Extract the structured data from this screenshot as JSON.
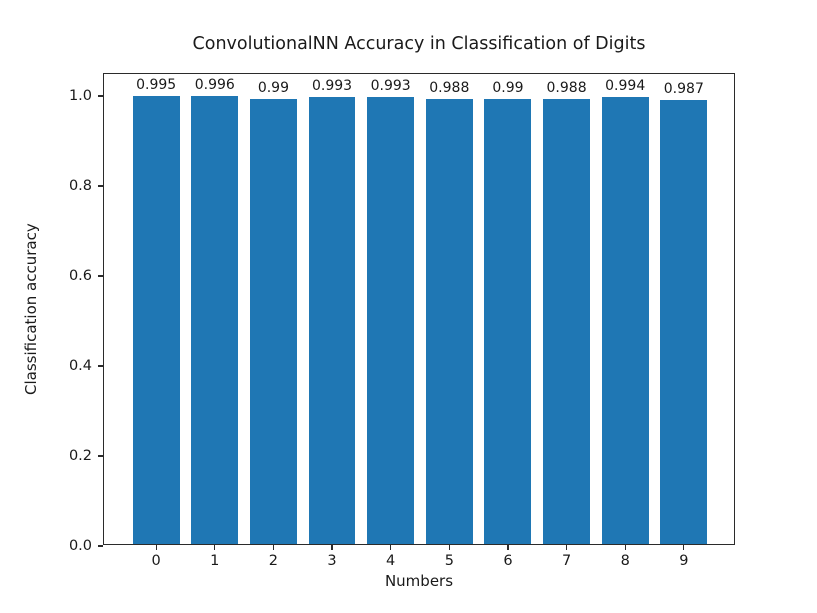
{
  "figure": {
    "background": "#ffffff",
    "text_color": "#1a1a1a",
    "spine_color": "#2b2b2b"
  },
  "chart_data": {
    "type": "bar",
    "title": "ConvolutionalNN Accuracy in Classification of Digits",
    "xlabel": "Numbers",
    "ylabel": "Classification accuracy",
    "categories": [
      "0",
      "1",
      "2",
      "3",
      "4",
      "5",
      "6",
      "7",
      "8",
      "9"
    ],
    "values": [
      0.995,
      0.996,
      0.99,
      0.993,
      0.993,
      0.988,
      0.99,
      0.988,
      0.994,
      0.987
    ],
    "bar_labels": [
      "0.995",
      "0.996",
      "0.99",
      "0.993",
      "0.993",
      "0.988",
      "0.99",
      "0.988",
      "0.994",
      "0.987"
    ],
    "yticks": [
      0.0,
      0.2,
      0.4,
      0.6,
      0.8,
      1.0
    ],
    "ytick_labels": [
      "0.0",
      "0.2",
      "0.4",
      "0.6",
      "0.8",
      "1.0"
    ],
    "ylim": [
      0,
      1.049
    ],
    "xlim": [
      -0.89,
      9.89
    ],
    "bar_width": 0.8,
    "bar_color": "#1f77b4",
    "grid": false,
    "legend": null
  }
}
